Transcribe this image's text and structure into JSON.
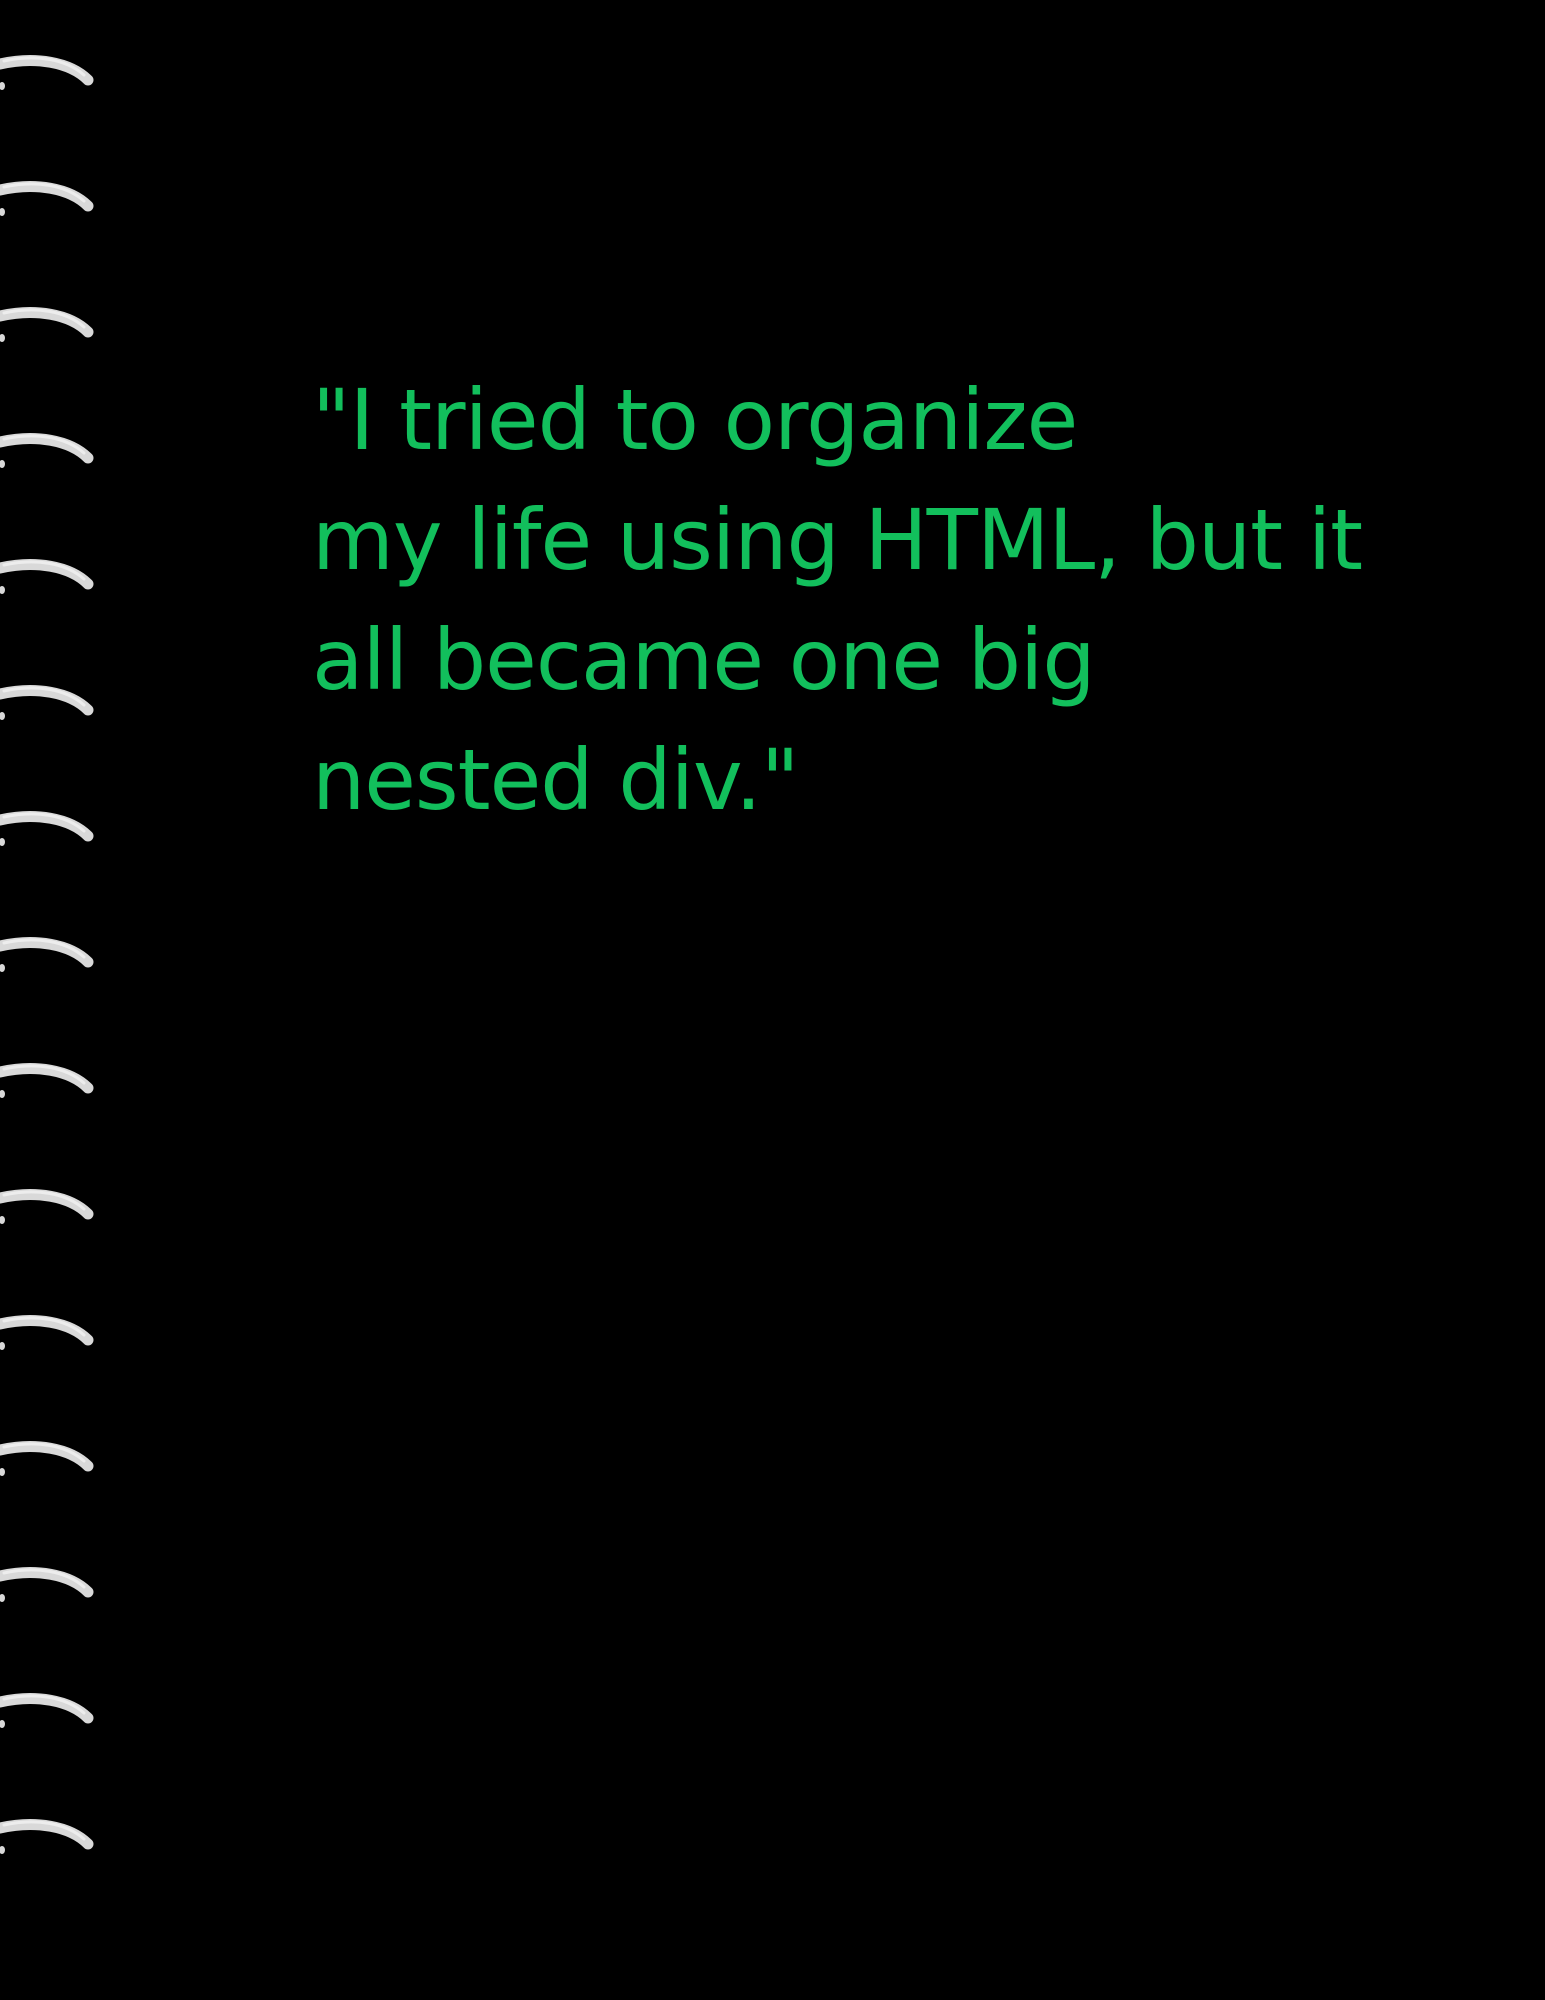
{
  "notebook": {
    "background_color": "#000000",
    "text_color": "#12bf5c",
    "ring_color": "#d9d9d9",
    "ring_count": 15,
    "binding_icon": "spiral-ring-icon"
  },
  "quote": {
    "lines": [
      "\"I tried to organize",
      "my life using HTML, but it",
      "all became one big",
      "nested div.\""
    ]
  }
}
